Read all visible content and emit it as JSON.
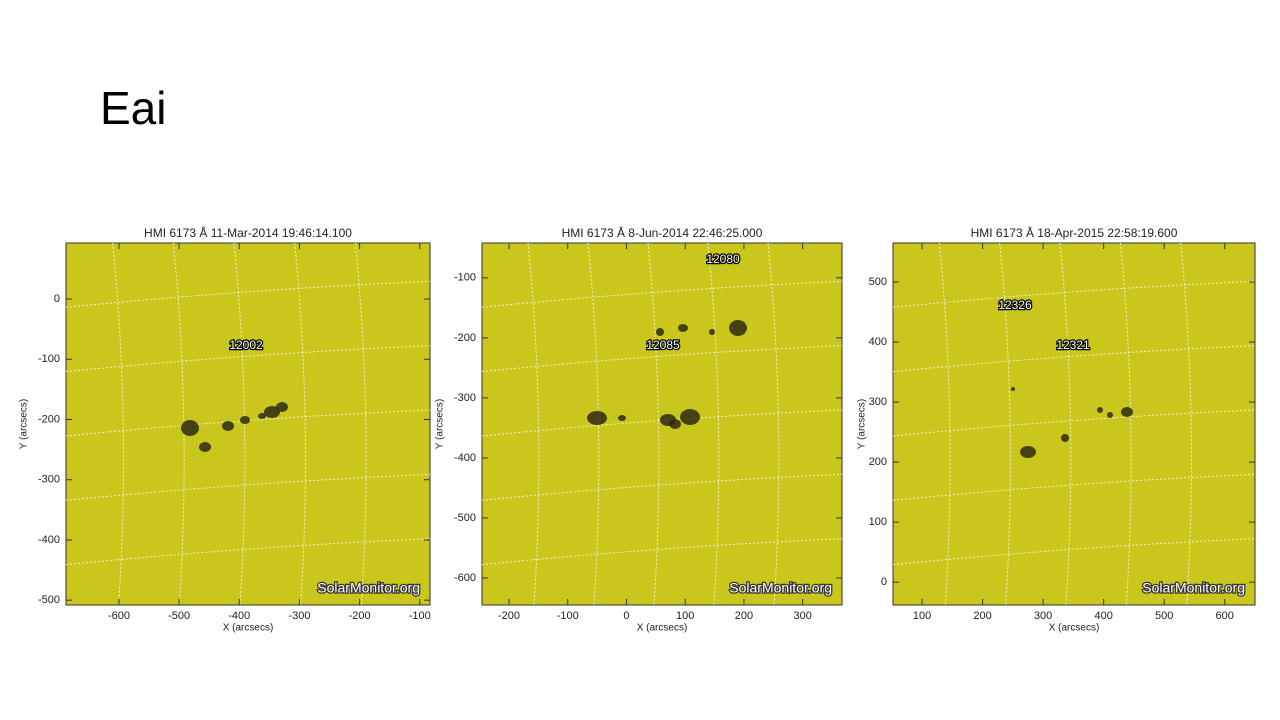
{
  "title": "Eai",
  "panels": [
    {
      "title": "HMI 6173 Å 11-Mar-2014 19:46:14.100",
      "x_label": "X (arcsecs)",
      "y_label": "Y (arcsecs)",
      "xlim": [
        -688,
        -83
      ],
      "ylim": [
        -508,
        93
      ],
      "xticks": [
        -600,
        -500,
        -400,
        -300,
        -200,
        -100
      ],
      "yticks": [
        -500,
        -400,
        -300,
        -200,
        -100,
        0
      ],
      "regions": [
        "12002"
      ],
      "watermark": "SolarMonitor.org"
    },
    {
      "title": "HMI 6173 Å  8-Jun-2014 22:46:25.000",
      "x_label": "X (arcsecs)",
      "y_label": "Y (arcsecs)",
      "xlim": [
        -246,
        367
      ],
      "ylim": [
        -645,
        -42
      ],
      "xticks": [
        -200,
        -100,
        0,
        100,
        200,
        300
      ],
      "yticks": [
        -600,
        -500,
        -400,
        -300,
        -200,
        -100
      ],
      "regions": [
        "12080",
        "12085"
      ],
      "watermark": "SolarMonitor.org"
    },
    {
      "title": "HMI 6173 Å 18-Apr-2015 22:58:19.600",
      "x_label": "X (arcsecs)",
      "y_label": "Y (arcsecs)",
      "xlim": [
        52,
        650
      ],
      "ylim": [
        -38,
        565
      ],
      "xticks": [
        100,
        200,
        300,
        400,
        500,
        600
      ],
      "yticks": [
        0,
        100,
        200,
        300,
        400,
        500
      ],
      "regions": [
        "12326",
        "12321"
      ],
      "watermark": "SolarMonitor.org"
    }
  ]
}
